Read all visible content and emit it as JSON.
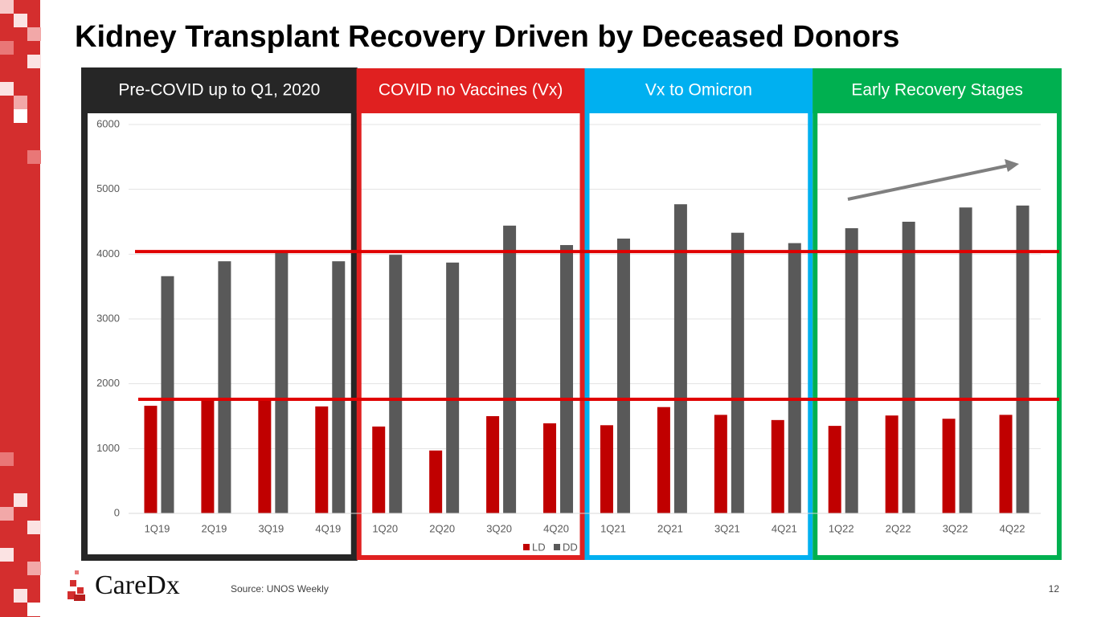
{
  "chart_data": {
    "type": "bar",
    "title": "Kidney Transplant Recovery Driven by Deceased Donors",
    "categories": [
      "1Q19",
      "2Q19",
      "3Q19",
      "4Q19",
      "1Q20",
      "2Q20",
      "3Q20",
      "4Q20",
      "1Q21",
      "2Q21",
      "3Q21",
      "4Q21",
      "1Q22",
      "2Q22",
      "3Q22",
      "4Q22"
    ],
    "series": [
      {
        "name": "LD",
        "color": "#c00000",
        "values": [
          1660,
          1760,
          1760,
          1650,
          1340,
          970,
          1500,
          1390,
          1360,
          1640,
          1520,
          1440,
          1350,
          1510,
          1460,
          1520
        ]
      },
      {
        "name": "DD",
        "color": "#595959",
        "values": [
          3660,
          3890,
          4050,
          3890,
          3990,
          3870,
          4440,
          4140,
          4240,
          4770,
          4330,
          4170,
          4400,
          4500,
          4720,
          4750
        ]
      }
    ],
    "ylim": [
      0,
      6000
    ],
    "yticks": [
      0,
      1000,
      2000,
      3000,
      4000,
      5000,
      6000
    ],
    "grid": true,
    "legend": "bottom",
    "reference_lines": [
      4040,
      1760
    ],
    "reference_color": "#e00000",
    "sections": [
      {
        "label": "Pre-COVID up to Q1, 2020",
        "color": "#262626"
      },
      {
        "label": "COVID no Vaccines (Vx)",
        "color": "#e02020"
      },
      {
        "label": "Vx to Omicron",
        "color": "#00b0f0"
      },
      {
        "label": "Early Recovery Stages",
        "color": "#00b050"
      }
    ]
  },
  "footer": {
    "logo": "CareDx",
    "source": "Source: UNOS Weekly",
    "page_number": "12"
  }
}
